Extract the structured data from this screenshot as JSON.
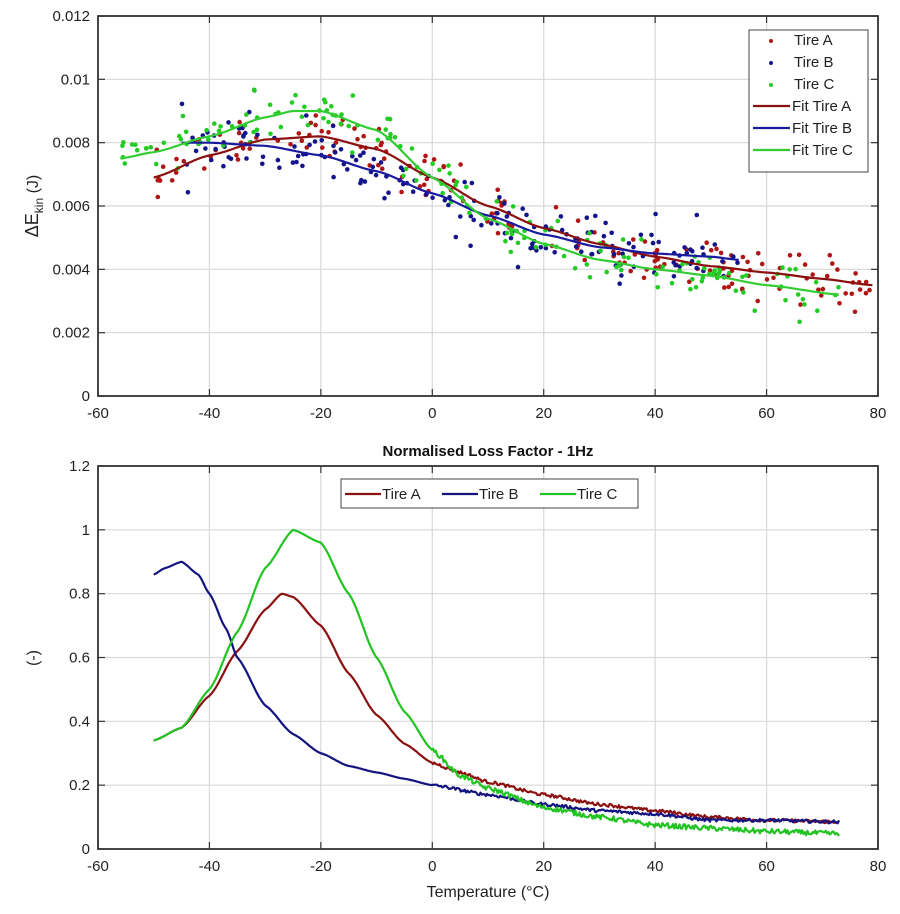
{
  "chart_data": [
    {
      "type": "scatter",
      "title": "",
      "xlabel": "",
      "ylabel": "ΔE_kin (J)",
      "ylabel_main": "ΔE",
      "ylabel_sub": "kin",
      "ylabel_unit": " (J)",
      "xlim": [
        -60,
        80
      ],
      "ylim": [
        0,
        0.012
      ],
      "xticks": [
        -60,
        -40,
        -20,
        0,
        20,
        40,
        60,
        80
      ],
      "xtick_labels": [
        "-60",
        "-40",
        "-20",
        "0",
        "20",
        "40",
        "60",
        "80"
      ],
      "yticks": [
        0,
        0.002,
        0.004,
        0.006,
        0.008,
        0.01,
        0.012
      ],
      "ytick_labels": [
        "0",
        "0.002",
        "0.004",
        "0.006",
        "0.008",
        "0.01",
        "0.012"
      ],
      "grid": true,
      "legend_position": "top-right",
      "legend": [
        "Tire A",
        "Tire B",
        "Tire C",
        "Fit Tire A",
        "Fit Tire B",
        "Fit Tire C"
      ],
      "series": [
        {
          "name": "Tire A",
          "kind": "points",
          "color": "#b01515",
          "x_range": [
            -50,
            79
          ],
          "note": "scatter around fit curve",
          "fit_ref": "Fit Tire A",
          "spread": 0.0004
        },
        {
          "name": "Tire B",
          "kind": "points",
          "color": "#14148a",
          "x_range": [
            -45,
            55
          ],
          "fit_ref": "Fit Tire B",
          "spread": 0.00045
        },
        {
          "name": "Tire C",
          "kind": "points",
          "color": "#22cc22",
          "x_range": [
            -56,
            73
          ],
          "fit_ref": "Fit Tire C",
          "spread": 0.0004
        },
        {
          "name": "Fit Tire A",
          "kind": "line",
          "color": "#8b1010",
          "x": [
            -50,
            -40,
            -30,
            -20,
            -10,
            0,
            10,
            20,
            30,
            40,
            50,
            60,
            70,
            79
          ],
          "y": [
            0.0069,
            0.0076,
            0.0081,
            0.0082,
            0.0078,
            0.0069,
            0.006,
            0.0053,
            0.0048,
            0.0044,
            0.0041,
            0.0039,
            0.0037,
            0.0035
          ]
        },
        {
          "name": "Fit Tire B",
          "kind": "line",
          "color": "#1a1a9e",
          "x": [
            -45,
            -40,
            -30,
            -20,
            -10,
            0,
            10,
            20,
            30,
            40,
            50,
            55
          ],
          "y": [
            0.008,
            0.008,
            0.0079,
            0.0076,
            0.0071,
            0.0064,
            0.0057,
            0.0051,
            0.0047,
            0.0045,
            0.0044,
            0.0043
          ]
        },
        {
          "name": "Fit Tire C",
          "kind": "line",
          "color": "#33cc33",
          "x": [
            -56,
            -50,
            -40,
            -30,
            -25,
            -20,
            -10,
            0,
            10,
            20,
            30,
            40,
            50,
            60,
            73
          ],
          "y": [
            0.0075,
            0.0077,
            0.0082,
            0.0088,
            0.009,
            0.009,
            0.0084,
            0.0069,
            0.0056,
            0.0048,
            0.0043,
            0.004,
            0.0038,
            0.0035,
            0.0032
          ]
        }
      ]
    },
    {
      "type": "line",
      "title": "Normalised Loss Factor - 1Hz",
      "xlabel": "Temperature (°C)",
      "ylabel": "(-)",
      "xlim": [
        -60,
        80
      ],
      "ylim": [
        0,
        1.2
      ],
      "xticks": [
        -60,
        -40,
        -20,
        0,
        20,
        40,
        60,
        80
      ],
      "xtick_labels": [
        "-60",
        "-40",
        "-20",
        "0",
        "20",
        "40",
        "60",
        "80"
      ],
      "yticks": [
        0,
        0.2,
        0.4,
        0.6,
        0.8,
        1,
        1.2
      ],
      "ytick_labels": [
        "0",
        "0.2",
        "0.4",
        "0.6",
        "0.8",
        "1",
        "1.2"
      ],
      "grid": true,
      "legend_position": "top-center",
      "legend": [
        "Tire A",
        "Tire B",
        "Tire C"
      ],
      "series": [
        {
          "name": "Tire A",
          "color": "#8b1010",
          "x": [
            -50,
            -45,
            -40,
            -35,
            -30,
            -27,
            -25,
            -20,
            -15,
            -10,
            -5,
            0,
            5,
            10,
            20,
            30,
            40,
            50,
            60,
            73
          ],
          "y": [
            0.34,
            0.38,
            0.48,
            0.62,
            0.75,
            0.8,
            0.79,
            0.7,
            0.55,
            0.42,
            0.33,
            0.27,
            0.24,
            0.21,
            0.17,
            0.14,
            0.12,
            0.1,
            0.09,
            0.085
          ]
        },
        {
          "name": "Tire B",
          "color": "#141480",
          "x": [
            -50,
            -48,
            -45,
            -42,
            -40,
            -37,
            -35,
            -30,
            -25,
            -20,
            -15,
            -10,
            -5,
            0,
            10,
            20,
            30,
            40,
            50,
            60,
            73
          ],
          "y": [
            0.86,
            0.88,
            0.9,
            0.86,
            0.8,
            0.69,
            0.6,
            0.45,
            0.36,
            0.3,
            0.26,
            0.24,
            0.22,
            0.2,
            0.17,
            0.14,
            0.12,
            0.11,
            0.09,
            0.09,
            0.085
          ]
        },
        {
          "name": "Tire C",
          "color": "#22c322",
          "x": [
            -50,
            -45,
            -40,
            -35,
            -30,
            -25,
            -20,
            -15,
            -10,
            -5,
            0,
            5,
            10,
            20,
            30,
            40,
            50,
            60,
            73
          ],
          "y": [
            0.34,
            0.38,
            0.5,
            0.68,
            0.88,
            1.0,
            0.96,
            0.8,
            0.6,
            0.43,
            0.31,
            0.23,
            0.19,
            0.13,
            0.1,
            0.075,
            0.065,
            0.055,
            0.048
          ]
        }
      ]
    }
  ]
}
